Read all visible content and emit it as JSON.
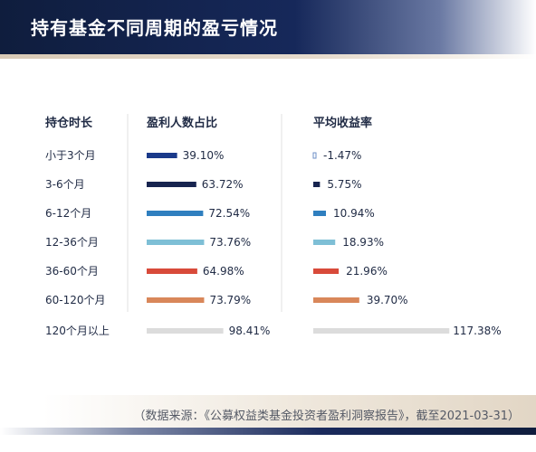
{
  "page": {
    "title": "持有基金不同周期的盈亏情况",
    "source_note": "（数据来源：《公募权益类基金投资者盈利洞察报告》，截至2021-03-31）"
  },
  "chart_data": {
    "type": "bar",
    "column_headers": [
      "持仓时长",
      "盈利人数占比",
      "平均收益率"
    ],
    "categories": [
      "小于3个月",
      "3-6个月",
      "6-12个月",
      "12-36个月",
      "36-60个月",
      "60-120个月",
      "120个月以上"
    ],
    "colors": [
      "#1a3a8a",
      "#17244f",
      "#2f7fbf",
      "#7ebfd6",
      "#d84a3a",
      "#d9875a",
      "#dcdcdc"
    ],
    "series": [
      {
        "name": "盈利人数占比",
        "values": [
          39.1,
          63.72,
          72.54,
          73.76,
          64.98,
          73.79,
          98.41
        ],
        "labels": [
          "39.10%",
          "63.72%",
          "72.54%",
          "73.76%",
          "64.98%",
          "73.79%",
          "98.41%"
        ]
      },
      {
        "name": "平均收益率",
        "values": [
          -1.47,
          5.75,
          10.94,
          18.93,
          21.96,
          39.7,
          117.38
        ],
        "labels": [
          "-1.47%",
          "5.75%",
          "10.94%",
          "18.93%",
          "21.96%",
          "39.70%",
          "117.38%"
        ]
      }
    ],
    "grid": false,
    "legend": "none"
  }
}
